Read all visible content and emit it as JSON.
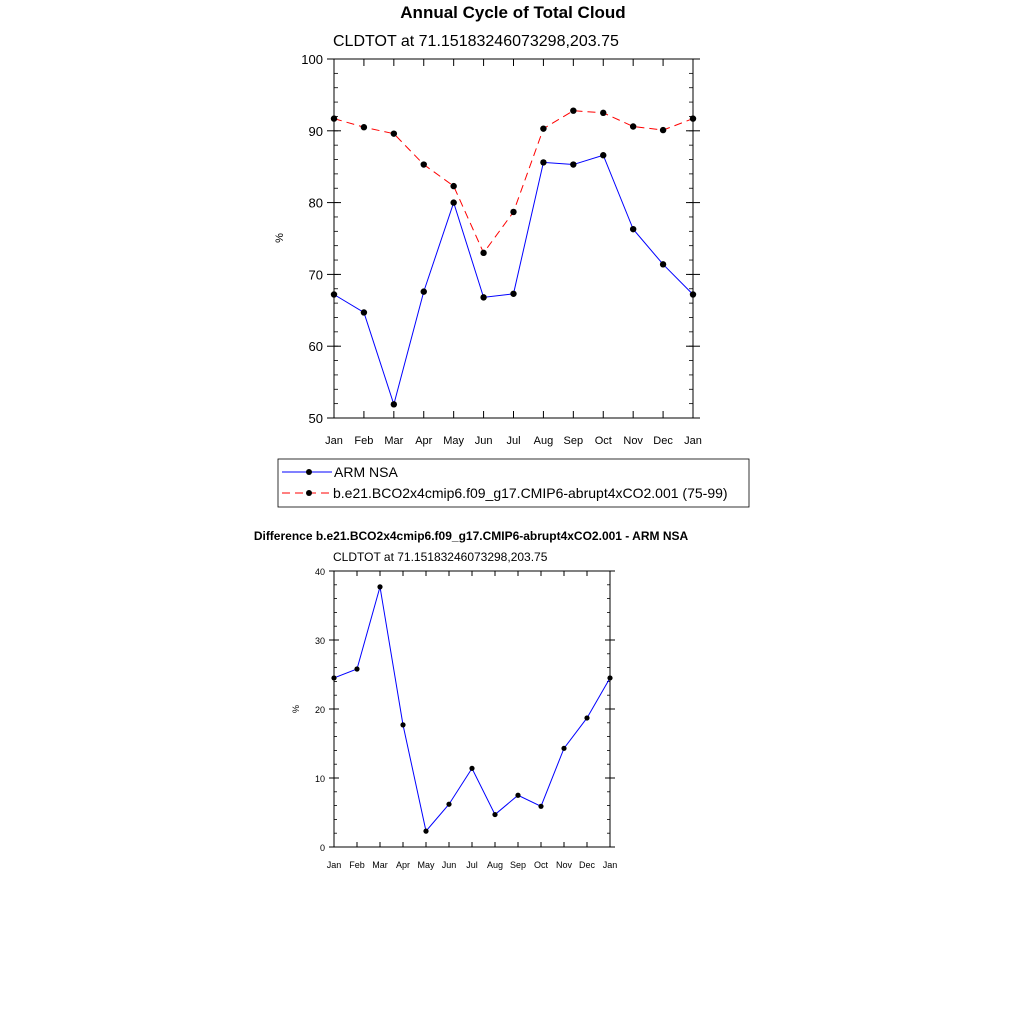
{
  "chart_data": [
    {
      "type": "line",
      "title": "Annual Cycle of Total Cloud",
      "subtitle": "CLDTOT at 71.15183246073298,203.75",
      "xlabel": "",
      "ylabel": "%",
      "categories": [
        "Jan",
        "Feb",
        "Mar",
        "Apr",
        "May",
        "Jun",
        "Jul",
        "Aug",
        "Sep",
        "Oct",
        "Nov",
        "Dec",
        "Jan"
      ],
      "ylim": [
        50,
        100
      ],
      "yticks": [
        50,
        60,
        70,
        80,
        90,
        100
      ],
      "legend_position": "bottom",
      "series": [
        {
          "name": "ARM NSA",
          "color": "#0000ff",
          "dash": "solid",
          "values": [
            67.2,
            64.7,
            51.9,
            67.6,
            80.0,
            66.8,
            67.3,
            85.6,
            85.3,
            86.6,
            76.3,
            71.4,
            67.2
          ]
        },
        {
          "name": "b.e21.BCO2x4cmip6.f09_g17.CMIP6-abrupt4xCO2.001 (75-99)",
          "color": "#ff0000",
          "dash": "dashed",
          "values": [
            91.7,
            90.5,
            89.6,
            85.3,
            82.3,
            73.0,
            78.7,
            90.3,
            92.8,
            92.5,
            90.6,
            90.1,
            91.7
          ]
        }
      ]
    },
    {
      "type": "line",
      "title": "Difference b.e21.BCO2x4cmip6.f09_g17.CMIP6-abrupt4xCO2.001 - ARM NSA",
      "subtitle": "CLDTOT at 71.15183246073298,203.75",
      "xlabel": "",
      "ylabel": "%",
      "categories": [
        "Jan",
        "Feb",
        "Mar",
        "Apr",
        "May",
        "Jun",
        "Jul",
        "Aug",
        "Sep",
        "Oct",
        "Nov",
        "Dec",
        "Jan"
      ],
      "ylim": [
        0,
        40
      ],
      "yticks": [
        0,
        10,
        20,
        30,
        40
      ],
      "series": [
        {
          "name": "Difference",
          "color": "#0000ff",
          "dash": "solid",
          "values": [
            24.5,
            25.8,
            37.7,
            17.7,
            2.3,
            6.2,
            11.4,
            4.7,
            7.5,
            5.9,
            14.3,
            18.7,
            24.5
          ]
        }
      ]
    }
  ]
}
